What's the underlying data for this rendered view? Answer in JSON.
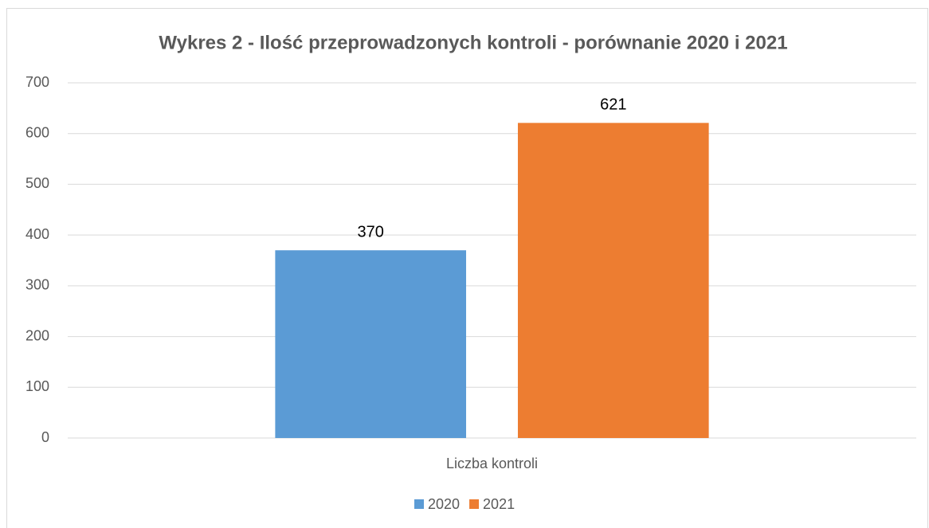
{
  "chart_data": {
    "type": "bar",
    "title": "Wykres 2 - Ilość przeprowadzonych kontroli - porównanie 2020 i 2021",
    "categories": [
      "Liczba kontroli"
    ],
    "series": [
      {
        "name": "2020",
        "color": "#5b9bd5",
        "values": [
          370
        ]
      },
      {
        "name": "2021",
        "color": "#ed7d31",
        "values": [
          621
        ]
      }
    ],
    "ylim": [
      0,
      700
    ],
    "yticks": [
      0,
      100,
      200,
      300,
      400,
      500,
      600,
      700
    ],
    "grid": true,
    "legend": "bottom"
  }
}
